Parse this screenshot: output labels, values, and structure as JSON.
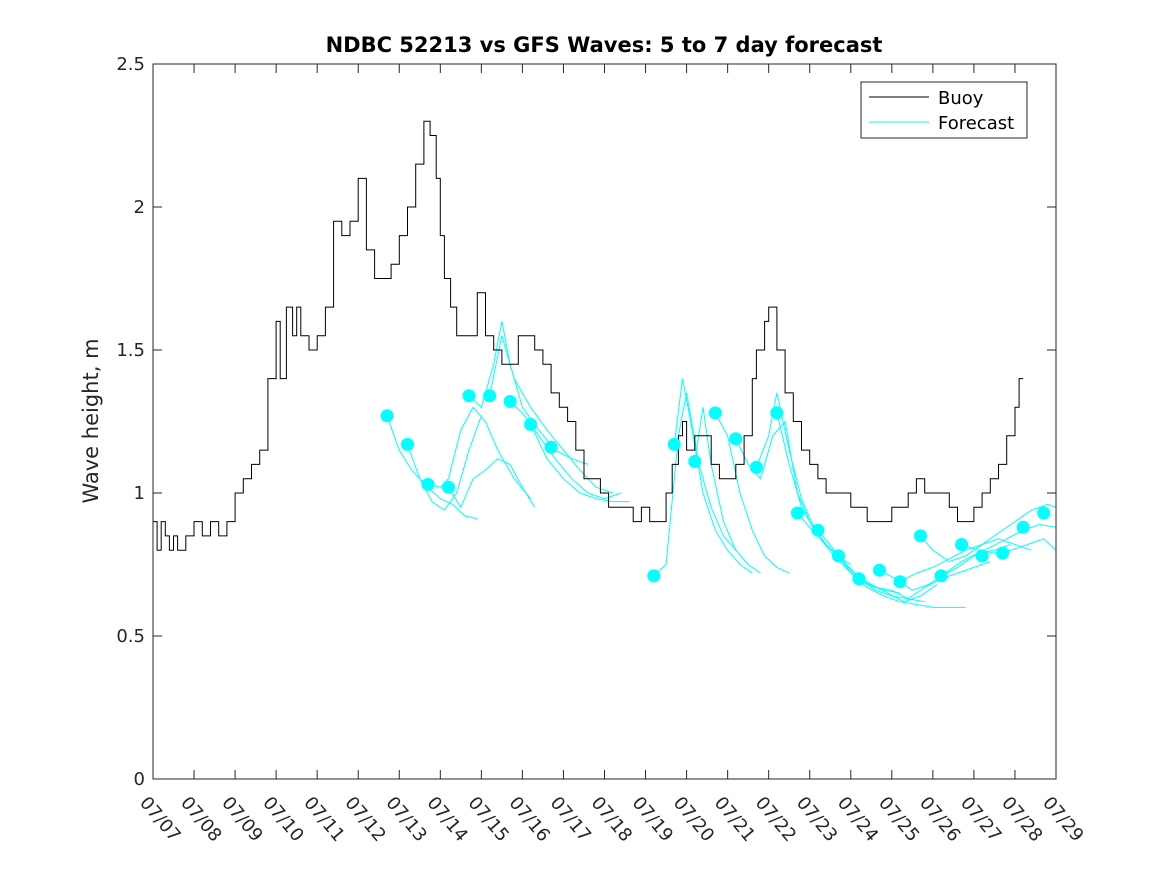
{
  "chart_data": {
    "type": "line",
    "title": "NDBC 52213 vs GFS Waves: 5 to 7 day forecast",
    "xlabel": "",
    "ylabel": "Wave height, m",
    "ylim": [
      0,
      2.5
    ],
    "xlim_days": [
      7,
      29
    ],
    "yticks": [
      "0",
      "0.5",
      "1",
      "1.5",
      "2",
      "2.5"
    ],
    "xtick_labels": [
      "07/07",
      "07/08",
      "07/09",
      "07/10",
      "07/11",
      "07/12",
      "07/13",
      "07/14",
      "07/15",
      "07/16",
      "07/17",
      "07/18",
      "07/19",
      "07/20",
      "07/21",
      "07/22",
      "07/23",
      "07/24",
      "07/25",
      "07/26",
      "07/27",
      "07/28",
      "07/29"
    ],
    "legend": {
      "position": "top-right",
      "entries": [
        {
          "label": "Buoy",
          "color": "#000000"
        },
        {
          "label": "Forecast",
          "color": "#00ffff"
        }
      ]
    },
    "colors": {
      "buoy": "#000000",
      "forecast": "#00ffff",
      "marker": "#00ffff"
    },
    "buoy": {
      "x_day": [
        7.0,
        7.1,
        7.2,
        7.3,
        7.4,
        7.5,
        7.6,
        7.8,
        8.0,
        8.2,
        8.4,
        8.6,
        8.8,
        9.0,
        9.2,
        9.4,
        9.6,
        9.8,
        10.0,
        10.1,
        10.25,
        10.4,
        10.5,
        10.6,
        10.8,
        11.0,
        11.2,
        11.4,
        11.6,
        11.8,
        12.0,
        12.2,
        12.4,
        12.6,
        12.8,
        13.0,
        13.2,
        13.4,
        13.6,
        13.75,
        13.9,
        14.0,
        14.1,
        14.25,
        14.4,
        14.5,
        14.7,
        14.9,
        15.1,
        15.3,
        15.5,
        15.7,
        15.9,
        16.1,
        16.3,
        16.5,
        16.7,
        16.9,
        17.1,
        17.3,
        17.5,
        17.7,
        17.9,
        18.1,
        18.3,
        18.5,
        18.7,
        18.9,
        19.1,
        19.3,
        19.5,
        19.65,
        19.8,
        19.9,
        20.0,
        20.2,
        20.4,
        20.6,
        20.8,
        21.0,
        21.2,
        21.4,
        21.6,
        21.7,
        21.9,
        22.0,
        22.2,
        22.4,
        22.6,
        22.8,
        23.0,
        23.2,
        23.4,
        23.6,
        23.8,
        24.0,
        24.2,
        24.4,
        24.6,
        24.8,
        25.0,
        25.2,
        25.4,
        25.6,
        25.8,
        26.0,
        26.2,
        26.4,
        26.6,
        26.8,
        27.0,
        27.2,
        27.4,
        27.6,
        27.8,
        28.0,
        28.1,
        28.2
      ],
      "y": [
        0.9,
        0.8,
        0.9,
        0.85,
        0.8,
        0.85,
        0.8,
        0.85,
        0.9,
        0.85,
        0.9,
        0.85,
        0.9,
        1.0,
        1.05,
        1.1,
        1.15,
        1.4,
        1.6,
        1.4,
        1.65,
        1.55,
        1.65,
        1.55,
        1.5,
        1.55,
        1.65,
        1.95,
        1.9,
        1.95,
        2.1,
        1.85,
        1.75,
        1.75,
        1.8,
        1.9,
        2.0,
        2.15,
        2.3,
        2.25,
        2.1,
        1.9,
        1.75,
        1.65,
        1.55,
        1.55,
        1.55,
        1.7,
        1.55,
        1.5,
        1.45,
        1.45,
        1.55,
        1.55,
        1.5,
        1.45,
        1.35,
        1.3,
        1.25,
        1.15,
        1.05,
        1.05,
        1.0,
        0.95,
        0.95,
        0.95,
        0.9,
        0.95,
        0.9,
        0.9,
        1.0,
        1.1,
        1.2,
        1.25,
        1.15,
        1.2,
        1.2,
        1.1,
        1.05,
        1.05,
        1.1,
        1.2,
        1.4,
        1.5,
        1.6,
        1.65,
        1.5,
        1.35,
        1.25,
        1.15,
        1.1,
        1.05,
        1.0,
        1.0,
        1.0,
        0.95,
        0.95,
        0.9,
        0.9,
        0.9,
        0.95,
        0.95,
        1.0,
        1.05,
        1.0,
        1.0,
        1.0,
        0.95,
        0.9,
        0.9,
        0.95,
        1.0,
        1.05,
        1.1,
        1.2,
        1.3,
        1.4,
        1.4
      ]
    },
    "forecast_markers": {
      "x_day": [
        12.7,
        13.2,
        13.7,
        14.2,
        14.7,
        15.2,
        15.7,
        16.2,
        16.7,
        19.2,
        19.7,
        20.2,
        20.7,
        21.2,
        21.7,
        22.2,
        22.7,
        23.2,
        23.7,
        24.2,
        24.7,
        25.2,
        25.7,
        26.2,
        26.7,
        27.2,
        27.7,
        28.2,
        28.7
      ],
      "y": [
        1.27,
        1.17,
        1.03,
        1.02,
        1.34,
        1.34,
        1.32,
        1.24,
        1.16,
        0.71,
        1.17,
        1.11,
        1.28,
        1.19,
        1.09,
        1.28,
        0.93,
        0.87,
        0.78,
        0.7,
        0.73,
        0.69,
        0.85,
        0.71,
        0.82,
        0.78,
        0.79,
        0.88,
        0.93
      ]
    },
    "forecast_series": [
      {
        "x_day": [
          12.7,
          13.0,
          13.3,
          13.7,
          14.0,
          14.3,
          14.6,
          14.9
        ],
        "y": [
          1.27,
          1.15,
          1.08,
          1.02,
          0.98,
          0.96,
          0.92,
          0.91
        ]
      },
      {
        "x_day": [
          13.2,
          13.5,
          13.8,
          14.1,
          14.4,
          14.7,
          15.0
        ],
        "y": [
          1.17,
          1.05,
          0.97,
          0.94,
          1.0,
          1.15,
          1.27
        ]
      },
      {
        "x_day": [
          13.7,
          14.0,
          14.2,
          14.5,
          14.8,
          15.1,
          15.4,
          15.8,
          16.2
        ],
        "y": [
          1.03,
          1.02,
          1.05,
          1.22,
          1.3,
          1.25,
          1.15,
          1.05,
          0.98
        ]
      },
      {
        "x_day": [
          14.2,
          14.5,
          14.8,
          15.1,
          15.4,
          15.7,
          16.0,
          16.3
        ],
        "y": [
          1.02,
          0.95,
          1.05,
          1.08,
          1.12,
          1.1,
          1.02,
          0.95
        ]
      },
      {
        "x_day": [
          14.7,
          15.0,
          15.3,
          15.5,
          15.7,
          16.0,
          16.4,
          16.8,
          17.2,
          17.6
        ],
        "y": [
          1.34,
          1.3,
          1.45,
          1.6,
          1.45,
          1.3,
          1.22,
          1.15,
          1.12,
          1.1
        ]
      },
      {
        "x_day": [
          15.2,
          15.5,
          15.8,
          16.2,
          16.6,
          17.0,
          17.4,
          17.8,
          18.2
        ],
        "y": [
          1.34,
          1.55,
          1.4,
          1.3,
          1.22,
          1.15,
          1.08,
          1.02,
          1.0
        ]
      },
      {
        "x_day": [
          15.7,
          16.0,
          16.4,
          16.8,
          17.2,
          17.6,
          18.0,
          18.4
        ],
        "y": [
          1.32,
          1.28,
          1.2,
          1.12,
          1.05,
          1.0,
          0.98,
          1.0
        ]
      },
      {
        "x_day": [
          16.2,
          16.6,
          17.0,
          17.4,
          17.8,
          18.2,
          18.6
        ],
        "y": [
          1.24,
          1.12,
          1.05,
          1.0,
          0.98,
          0.97,
          0.97
        ]
      },
      {
        "x_day": [
          19.2,
          19.5,
          19.8,
          20.0,
          20.3,
          20.6,
          20.9,
          21.2
        ],
        "y": [
          0.71,
          0.75,
          1.2,
          1.35,
          1.1,
          0.95,
          0.85,
          0.8
        ]
      },
      {
        "x_day": [
          19.7,
          19.9,
          20.1,
          20.4,
          20.7,
          21.0,
          21.3,
          21.6
        ],
        "y": [
          1.17,
          1.4,
          1.25,
          1.0,
          0.87,
          0.8,
          0.75,
          0.72
        ]
      },
      {
        "x_day": [
          20.2,
          20.4,
          20.6,
          20.9,
          21.2,
          21.5,
          21.8
        ],
        "y": [
          1.11,
          1.3,
          1.1,
          0.9,
          0.8,
          0.75,
          0.72
        ]
      },
      {
        "x_day": [
          20.7,
          21.0,
          21.3,
          21.6,
          21.9,
          22.2,
          22.5
        ],
        "y": [
          1.28,
          1.2,
          1.0,
          0.87,
          0.78,
          0.74,
          0.72
        ]
      },
      {
        "x_day": [
          21.2,
          21.5,
          21.8,
          22.1,
          22.4,
          22.7,
          23.0
        ],
        "y": [
          1.19,
          1.1,
          1.05,
          1.2,
          1.25,
          1.0,
          0.9
        ]
      },
      {
        "x_day": [
          21.7,
          22.0,
          22.2,
          22.5,
          22.8,
          23.1,
          23.4,
          23.7,
          24.0
        ],
        "y": [
          1.09,
          1.2,
          1.35,
          1.15,
          0.98,
          0.88,
          0.82,
          0.78,
          0.75
        ]
      },
      {
        "x_day": [
          22.2,
          22.5,
          22.8,
          23.2,
          23.6,
          24.0,
          24.4,
          24.8,
          25.2
        ],
        "y": [
          1.28,
          1.1,
          0.95,
          0.85,
          0.78,
          0.72,
          0.68,
          0.66,
          0.65
        ]
      },
      {
        "x_day": [
          22.7,
          23.0,
          23.4,
          23.8,
          24.2,
          24.6,
          25.0,
          25.4,
          25.8
        ],
        "y": [
          0.93,
          0.88,
          0.82,
          0.76,
          0.7,
          0.66,
          0.64,
          0.63,
          0.62
        ]
      },
      {
        "x_day": [
          23.2,
          23.6,
          24.0,
          24.4,
          24.8,
          25.2,
          25.6,
          26.0,
          26.4,
          26.8
        ],
        "y": [
          0.87,
          0.8,
          0.72,
          0.67,
          0.64,
          0.62,
          0.61,
          0.6,
          0.6,
          0.6
        ]
      },
      {
        "x_day": [
          23.7,
          24.1,
          24.5,
          24.9,
          25.3,
          25.7,
          26.1
        ],
        "y": [
          0.78,
          0.72,
          0.68,
          0.65,
          0.62,
          0.64,
          0.68
        ]
      },
      {
        "x_day": [
          24.2,
          24.6,
          25.0,
          25.4,
          25.8,
          26.2,
          26.6,
          27.0,
          27.4
        ],
        "y": [
          0.7,
          0.67,
          0.66,
          0.63,
          0.67,
          0.7,
          0.72,
          0.74,
          0.76
        ]
      },
      {
        "x_day": [
          24.7,
          25.1,
          25.5,
          25.9,
          26.3,
          26.7,
          27.1,
          27.5,
          27.9
        ],
        "y": [
          0.73,
          0.7,
          0.66,
          0.68,
          0.72,
          0.76,
          0.79,
          0.8,
          0.82
        ]
      },
      {
        "x_day": [
          25.2,
          25.6,
          26.0,
          26.4,
          26.8,
          27.2,
          27.6,
          28.0,
          28.4
        ],
        "y": [
          0.69,
          0.72,
          0.74,
          0.77,
          0.8,
          0.82,
          0.84,
          0.82,
          0.8
        ]
      },
      {
        "x_day": [
          25.7,
          26.0,
          26.4,
          26.8,
          27.2,
          27.6,
          28.0,
          28.4,
          28.8,
          29.0
        ],
        "y": [
          0.85,
          0.8,
          0.76,
          0.78,
          0.82,
          0.86,
          0.9,
          0.94,
          0.96,
          0.95
        ]
      },
      {
        "x_day": [
          26.2,
          26.6,
          27.0,
          27.4,
          27.8,
          28.2,
          28.6,
          29.0
        ],
        "y": [
          0.71,
          0.74,
          0.78,
          0.81,
          0.84,
          0.87,
          0.89,
          0.88
        ]
      },
      {
        "x_day": [
          26.7,
          27.1,
          27.5,
          27.9,
          28.3,
          28.7,
          29.0
        ],
        "y": [
          0.82,
          0.8,
          0.79,
          0.8,
          0.82,
          0.84,
          0.8
        ]
      }
    ]
  }
}
